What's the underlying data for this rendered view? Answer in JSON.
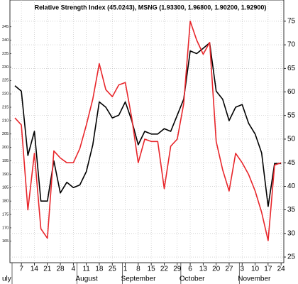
{
  "chart_data": {
    "type": "line",
    "title": "Relative Strength Index (45.0243), MSNG (1.93300, 1.96800, 1.90200, 1.92900)",
    "categories": [
      null,
      "7",
      null,
      "14",
      null,
      "21",
      null,
      "28",
      null,
      "4",
      null,
      "11",
      null,
      "18",
      null,
      "25",
      null,
      "1",
      null,
      "8",
      null,
      "15",
      null,
      "22",
      null,
      "29",
      null,
      "6",
      null,
      "13",
      null,
      "20",
      null,
      "27",
      null,
      "3",
      null,
      "10",
      null,
      "17",
      null,
      "24"
    ],
    "months": [
      "uly",
      null,
      null,
      null,
      null,
      null,
      null,
      null,
      null,
      null,
      "August",
      null,
      null,
      null,
      null,
      null,
      null,
      "September",
      null,
      null,
      null,
      null,
      null,
      null,
      null,
      null,
      "October",
      null,
      null,
      null,
      null,
      null,
      null,
      null,
      null,
      "November",
      null,
      null,
      null,
      null,
      null,
      null
    ],
    "series": [
      {
        "name": "MSNG",
        "color": "#000000",
        "axis": "y",
        "values": [
          223,
          221,
          197,
          206,
          180,
          180,
          195,
          183,
          187,
          185,
          186,
          191,
          201,
          217,
          215,
          211,
          212,
          217,
          210,
          201,
          206,
          205,
          205,
          207,
          206,
          212,
          218,
          236,
          235,
          237,
          239,
          221,
          218,
          210,
          215,
          216,
          209,
          205,
          198,
          178,
          194,
          194
        ]
      },
      {
        "name": "Relative Strength Index",
        "color": "#e8262b",
        "axis": "y2",
        "values": [
          54.5,
          53,
          35,
          47,
          31,
          29,
          47.5,
          46,
          45,
          45,
          48,
          53,
          58.5,
          66,
          60.5,
          59,
          61.5,
          62,
          54.5,
          45,
          50,
          49.5,
          49.5,
          39.5,
          48.5,
          50,
          57.5,
          75,
          71,
          68,
          70.5,
          49.5,
          43.5,
          39,
          47,
          45,
          42.5,
          39,
          34.5,
          28.5,
          44.5,
          45
        ]
      }
    ],
    "ylim": [
      157,
      255
    ],
    "yticks": [
      165,
      170,
      175,
      180,
      185,
      190,
      195,
      200,
      205,
      210,
      215,
      220,
      225,
      230,
      235,
      240,
      245
    ],
    "y2lim": [
      23.8,
      79.5
    ],
    "y2ticks": [
      25,
      30,
      35,
      40,
      45,
      50,
      55,
      60,
      65,
      70,
      75
    ],
    "grid": true
  }
}
